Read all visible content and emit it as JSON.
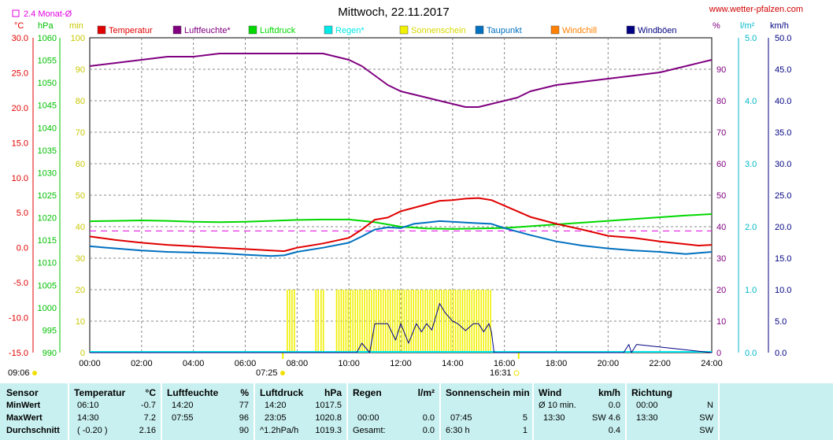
{
  "header": {
    "title": "Mittwoch, 22.11.2017",
    "site": "www.wetter-pfalzen.com",
    "monthly_avg_label": "2.4 Monat-Ø"
  },
  "axis_units": {
    "temp": "°C",
    "pressure": "hPa",
    "min": "min",
    "percent": "%",
    "rain": "l/m²",
    "wind": "km/h"
  },
  "axis_ticks": {
    "temp": [
      "30.0",
      "25.0",
      "20.0",
      "15.0",
      "10.0",
      "5.0",
      "0.0",
      "-5.0",
      "-10.0",
      "-15.0"
    ],
    "pressure": [
      "1060",
      "1055",
      "1050",
      "1045",
      "1040",
      "1035",
      "1030",
      "1025",
      "1020",
      "1015",
      "1010",
      "1005",
      "1000",
      "995",
      "990"
    ],
    "min": [
      "100",
      "90",
      "80",
      "70",
      "60",
      "50",
      "40",
      "30",
      "20",
      "10",
      "0"
    ],
    "percent": [
      "90",
      "80",
      "70",
      "60",
      "50",
      "40",
      "30",
      "20",
      "10",
      "0"
    ],
    "rain": [
      "5.0",
      "4.0",
      "3.0",
      "2.0",
      "1.0",
      "0.0"
    ],
    "wind": [
      "50.0",
      "45.0",
      "40.0",
      "35.0",
      "30.0",
      "25.0",
      "20.0",
      "15.0",
      "10.0",
      "5.0",
      "0.0"
    ],
    "time": [
      "00:00",
      "02:00",
      "04:00",
      "06:00",
      "08:00",
      "10:00",
      "12:00",
      "14:00",
      "16:00",
      "18:00",
      "20:00",
      "22:00",
      "24:00"
    ]
  },
  "sun_times": {
    "sunrise_label": "09:06",
    "rise": "07:25",
    "set": "16:31"
  },
  "legend": [
    {
      "label": "Temperatur",
      "color": "#e00000"
    },
    {
      "label": "Luftfeuchte*",
      "color": "#800080"
    },
    {
      "label": "Luftdruck",
      "color": "#00d800"
    },
    {
      "label": "Regen*",
      "color": "#00e8e8"
    },
    {
      "label": "Sonnenschein",
      "color": "#f0f000"
    },
    {
      "label": "Taupunkt",
      "color": "#0070c0"
    },
    {
      "label": "Windchill",
      "color": "#ff8000"
    },
    {
      "label": "Windböen",
      "color": "#000080"
    }
  ],
  "chart_data": {
    "type": "line",
    "x_unit": "hour of day",
    "xlim": [
      0,
      24
    ],
    "series": [
      {
        "name": "Temperatur",
        "unit": "°C",
        "color": "#e00000",
        "x": [
          0,
          1,
          2,
          3,
          4,
          5,
          6,
          7,
          7.5,
          8,
          9,
          10,
          10.5,
          11,
          11.5,
          12,
          12.5,
          13,
          13.5,
          14,
          14.5,
          15,
          15.5,
          16,
          17,
          18,
          19,
          20,
          21,
          22,
          23,
          23.5,
          24
        ],
        "y": [
          1.6,
          1.1,
          0.7,
          0.4,
          0.2,
          0.0,
          -0.2,
          -0.4,
          -0.5,
          0.0,
          0.6,
          1.4,
          2.6,
          4.0,
          4.3,
          5.2,
          5.7,
          6.2,
          6.7,
          6.8,
          7.0,
          7.1,
          6.8,
          6.0,
          4.4,
          3.4,
          2.6,
          1.7,
          1.4,
          0.9,
          0.5,
          0.3,
          0.4
        ]
      },
      {
        "name": "Luftfeuchte*",
        "unit": "%",
        "color": "#800080",
        "x": [
          0,
          1,
          2,
          3,
          4,
          5,
          6,
          7,
          8,
          9,
          9.5,
          10,
          10.5,
          11,
          11.5,
          12,
          12.5,
          13,
          13.5,
          14,
          14.5,
          15,
          15.5,
          16,
          16.5,
          17,
          18,
          19,
          20,
          21,
          22,
          23,
          24
        ],
        "y": [
          91,
          92,
          93,
          94,
          94,
          95,
          95,
          95,
          95,
          95,
          94,
          93,
          91,
          88,
          85,
          83,
          82,
          81,
          80,
          79,
          78,
          78,
          79,
          80,
          81,
          83,
          85,
          86,
          87,
          88,
          89,
          91,
          93
        ]
      },
      {
        "name": "Luftdruck",
        "unit": "hPa",
        "color": "#00d800",
        "x": [
          0,
          1,
          2,
          3,
          4,
          5,
          6,
          7,
          8,
          9,
          10,
          11,
          11.5,
          12,
          13,
          14,
          15,
          16,
          17,
          18,
          19,
          20,
          21,
          22,
          23,
          24
        ],
        "y": [
          1019.2,
          1019.3,
          1019.4,
          1019.3,
          1019.1,
          1019.0,
          1019.1,
          1019.3,
          1019.5,
          1019.6,
          1019.6,
          1019.0,
          1018.5,
          1018.0,
          1017.6,
          1017.5,
          1017.6,
          1017.7,
          1018.1,
          1018.5,
          1018.9,
          1019.3,
          1019.7,
          1020.1,
          1020.5,
          1020.8
        ]
      },
      {
        "name": "Taupunkt",
        "unit": "°C",
        "color": "#0070c0",
        "x": [
          0,
          1,
          2,
          3,
          4,
          5,
          6,
          7,
          7.5,
          8,
          9,
          10,
          10.5,
          11,
          11.5,
          12,
          12.5,
          13,
          13.5,
          14,
          14.5,
          15,
          15.5,
          16,
          17,
          18,
          19,
          20,
          21,
          22,
          23,
          24
        ],
        "y": [
          0.2,
          -0.1,
          -0.4,
          -0.6,
          -0.7,
          -0.8,
          -1.0,
          -1.2,
          -1.1,
          -0.6,
          0.0,
          0.7,
          1.6,
          2.6,
          2.9,
          2.8,
          3.4,
          3.6,
          3.8,
          3.7,
          3.6,
          3.5,
          3.4,
          2.8,
          1.8,
          0.9,
          0.3,
          -0.1,
          -0.4,
          -0.6,
          -0.9,
          -0.6
        ]
      },
      {
        "name": "Windböen",
        "unit": "km/h",
        "color": "#000080",
        "x": [
          0,
          10.3,
          10.5,
          10.8,
          11,
          11.5,
          11.8,
          12,
          12.3,
          12.6,
          12.8,
          13,
          13.2,
          13.5,
          13.7,
          14,
          14.2,
          14.5,
          14.8,
          15,
          15.2,
          15.4,
          15.5,
          15.6,
          20.6,
          20.8,
          20.9,
          21.1,
          24
        ],
        "y": [
          0,
          0,
          1.5,
          0,
          4.6,
          4.6,
          2,
          4.6,
          1.5,
          4.6,
          3.3,
          4.6,
          3.6,
          7.8,
          6.4,
          5.0,
          4.6,
          3.5,
          4.6,
          4.6,
          3.3,
          4.6,
          3.3,
          0,
          0,
          1.3,
          0,
          1.3,
          0
        ]
      },
      {
        "name": "Sonnenschein",
        "unit": "min",
        "x": [
          7.6,
          7.9,
          8.7,
          8.9,
          9.5,
          10.5,
          11.5,
          12.5,
          13.5,
          14.5,
          15.4
        ],
        "y": [
          5,
          5,
          5,
          5,
          5,
          5,
          5,
          5,
          5,
          5,
          5
        ]
      }
    ],
    "monthly_avg_temp": 2.4
  },
  "table": {
    "sensor": {
      "head": "Sensor",
      "rows": [
        "MinWert",
        "MaxWert",
        "Durchschnitt"
      ]
    },
    "temperatur": {
      "head": "Temperatur",
      "unit": "°C",
      "rows": [
        [
          "06:10",
          "-0.7"
        ],
        [
          "14:30",
          "7.2"
        ],
        [
          "( -0.20 )",
          "2.16"
        ]
      ]
    },
    "luftfeuchte": {
      "head": "Luftfeuchte",
      "unit": "%",
      "rows": [
        [
          "14:20",
          "77"
        ],
        [
          "07:55",
          "96"
        ],
        [
          "",
          "90"
        ]
      ]
    },
    "luftdruck": {
      "head": "Luftdruck",
      "unit": "hPa",
      "rows": [
        [
          "14:20",
          "1017.5"
        ],
        [
          "23:05",
          "1020.8"
        ],
        [
          "^1.2hPa/h",
          "1019.3"
        ]
      ]
    },
    "regen": {
      "head": "Regen",
      "unit": "l/m²",
      "rows": [
        [
          "",
          ""
        ],
        [
          "00:00",
          "0.0"
        ],
        [
          "Gesamt:",
          "0.0"
        ]
      ]
    },
    "sonne": {
      "head": "Sonnenschein min",
      "rows": [
        [
          "",
          ""
        ],
        [
          "07:45",
          "5"
        ],
        [
          "6:30 h",
          "1"
        ]
      ]
    },
    "wind": {
      "head": "Wind",
      "unit": "km/h",
      "rows": [
        [
          "Ø 10 min.",
          "0.0"
        ],
        [
          "13:30",
          "SW 4.6"
        ],
        [
          "",
          "0.4"
        ]
      ]
    },
    "richtung": {
      "head": "Richtung",
      "rows": [
        [
          "00:00",
          "N"
        ],
        [
          "13:30",
          "SW"
        ],
        [
          "",
          "SW"
        ]
      ]
    }
  }
}
